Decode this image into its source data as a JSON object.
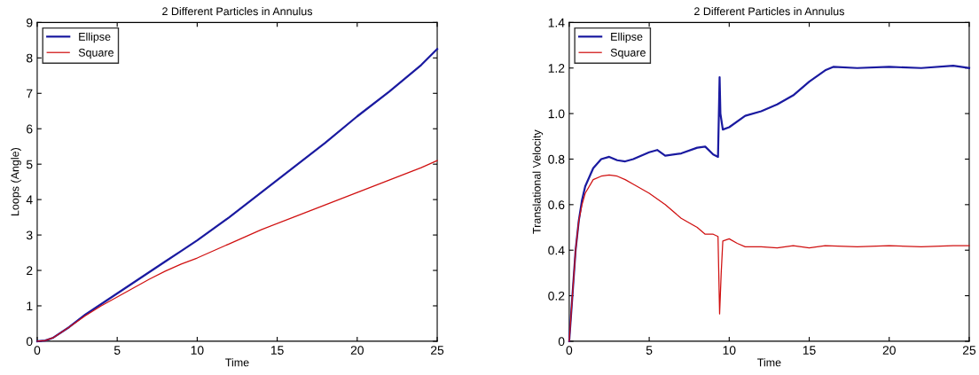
{
  "chart_data": [
    {
      "type": "line",
      "title": "2 Different Particles in Annulus",
      "xlabel": "Time",
      "ylabel": "Loops (Angle)",
      "xlim": [
        0,
        25
      ],
      "ylim": [
        0,
        9
      ],
      "xticks": [
        0,
        5,
        10,
        15,
        20,
        25
      ],
      "yticks": [
        0,
        1,
        2,
        3,
        4,
        5,
        6,
        7,
        8,
        9
      ],
      "grid": false,
      "legend": "top left",
      "series": [
        {
          "name": "Ellipse",
          "color": "#1a1aa0",
          "x": [
            0,
            0.5,
            1,
            2,
            3,
            4,
            5,
            6,
            7,
            8,
            9,
            10,
            12,
            14,
            16,
            18,
            20,
            22,
            24,
            25
          ],
          "values": [
            0,
            0.02,
            0.1,
            0.4,
            0.75,
            1.05,
            1.35,
            1.65,
            1.95,
            2.25,
            2.55,
            2.85,
            3.5,
            4.2,
            4.9,
            5.6,
            6.35,
            7.05,
            7.8,
            8.25
          ]
        },
        {
          "name": "Square",
          "color": "#d01010",
          "x": [
            0,
            0.5,
            1,
            2,
            3,
            4,
            5,
            6,
            7,
            8,
            9,
            10,
            12,
            14,
            16,
            18,
            20,
            22,
            24,
            25
          ],
          "values": [
            0,
            0.02,
            0.1,
            0.4,
            0.72,
            1.0,
            1.25,
            1.5,
            1.75,
            1.98,
            2.18,
            2.35,
            2.75,
            3.15,
            3.5,
            3.85,
            4.2,
            4.55,
            4.9,
            5.1
          ]
        }
      ]
    },
    {
      "type": "line",
      "title": "2 Different Particles in Annulus",
      "xlabel": "Time",
      "ylabel": "Translational Velocity",
      "xlim": [
        0,
        25
      ],
      "ylim": [
        0,
        1.4
      ],
      "xticks": [
        0,
        5,
        10,
        15,
        20,
        25
      ],
      "yticks": [
        0,
        {
          "value": 0.2,
          "label": "0.2"
        },
        {
          "value": 0.4,
          "label": "0.4"
        },
        {
          "value": 0.6,
          "label": "0.6"
        },
        {
          "value": 0.8,
          "label": "0.8"
        },
        {
          "value": 1.0,
          "label": "1.0"
        },
        {
          "value": 1.2,
          "label": "1.2"
        },
        {
          "value": 1.4,
          "label": "1.4"
        }
      ],
      "grid": false,
      "legend": "top left",
      "series": [
        {
          "name": "Ellipse",
          "color": "#1a1aa0",
          "x": [
            0,
            0.2,
            0.4,
            0.6,
            0.8,
            1,
            1.5,
            2,
            2.5,
            3,
            3.5,
            4,
            5,
            5.5,
            6,
            7,
            8,
            8.5,
            9,
            9.3,
            9.4,
            9.45,
            9.6,
            10,
            11,
            12,
            13,
            14,
            15,
            16,
            16.5,
            18,
            20,
            22,
            24,
            25
          ],
          "values": [
            0,
            0.2,
            0.4,
            0.53,
            0.62,
            0.68,
            0.76,
            0.8,
            0.81,
            0.795,
            0.79,
            0.8,
            0.83,
            0.84,
            0.815,
            0.825,
            0.85,
            0.855,
            0.82,
            0.81,
            1.16,
            1.0,
            0.93,
            0.94,
            0.99,
            1.01,
            1.04,
            1.08,
            1.14,
            1.19,
            1.205,
            1.2,
            1.205,
            1.2,
            1.21,
            1.2
          ]
        },
        {
          "name": "Square",
          "color": "#d01010",
          "x": [
            0,
            0.2,
            0.4,
            0.6,
            0.8,
            1,
            1.5,
            2,
            2.5,
            3,
            3.5,
            4,
            5,
            6,
            7,
            8,
            8.5,
            9,
            9.3,
            9.4,
            9.5,
            9.6,
            10,
            10.5,
            11,
            12,
            13,
            14,
            15,
            16,
            18,
            20,
            22,
            24,
            25
          ],
          "values": [
            0,
            0.2,
            0.4,
            0.53,
            0.6,
            0.65,
            0.71,
            0.725,
            0.73,
            0.725,
            0.71,
            0.69,
            0.65,
            0.6,
            0.54,
            0.5,
            0.47,
            0.47,
            0.46,
            0.12,
            0.3,
            0.44,
            0.45,
            0.43,
            0.415,
            0.415,
            0.41,
            0.42,
            0.41,
            0.42,
            0.415,
            0.42,
            0.415,
            0.42,
            0.42
          ]
        }
      ]
    }
  ]
}
